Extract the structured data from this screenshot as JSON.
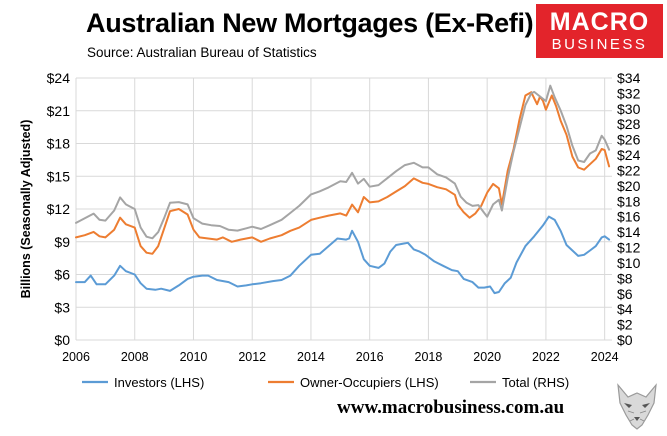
{
  "header": {
    "title": "Australian New Mortgages (Ex-Refi)",
    "source": "Source: Australian Bureau of Statistics"
  },
  "logo": {
    "line1": "MACRO",
    "line2": "BUSINESS"
  },
  "footer": {
    "url": "www.macrobusiness.com.au"
  },
  "chart_data": {
    "type": "line",
    "ylabel": "Billions (Seasonally Adjusted)",
    "xlim": [
      2006,
      2024.25
    ],
    "x_ticks": [
      2006,
      2008,
      2010,
      2012,
      2014,
      2016,
      2018,
      2020,
      2022,
      2024
    ],
    "x_tick_labels": [
      "2006",
      "2008",
      "2010",
      "2012",
      "2014",
      "2016",
      "2018",
      "2020",
      "2022",
      "2024"
    ],
    "ylim_left": [
      0,
      24
    ],
    "y_ticks_left": [
      0,
      3,
      6,
      9,
      12,
      15,
      18,
      21,
      24
    ],
    "y_tick_labels_left": [
      "$0",
      "$3",
      "$6",
      "$9",
      "$12",
      "$15",
      "$18",
      "$21",
      "$24"
    ],
    "ylim_right": [
      0,
      34
    ],
    "y_ticks_right": [
      0,
      2,
      4,
      6,
      8,
      10,
      12,
      14,
      16,
      18,
      20,
      22,
      24,
      26,
      28,
      30,
      32,
      34
    ],
    "y_tick_labels_right": [
      "$0",
      "$2",
      "$4",
      "$6",
      "$8",
      "$10",
      "$12",
      "$14",
      "$16",
      "$18",
      "$20",
      "$22",
      "$24",
      "$26",
      "$28",
      "$30",
      "$32",
      "$34"
    ],
    "grid": true,
    "legend_position": "bottom",
    "series": [
      {
        "name": "Investors (LHS)",
        "axis": "left",
        "color": "#5b9bd5",
        "points": [
          [
            2006.0,
            5.3
          ],
          [
            2006.3,
            5.3
          ],
          [
            2006.5,
            5.9
          ],
          [
            2006.7,
            5.1
          ],
          [
            2007.0,
            5.1
          ],
          [
            2007.3,
            5.9
          ],
          [
            2007.5,
            6.8
          ],
          [
            2007.7,
            6.3
          ],
          [
            2008.0,
            6.0
          ],
          [
            2008.2,
            5.2
          ],
          [
            2008.4,
            4.7
          ],
          [
            2008.7,
            4.6
          ],
          [
            2008.9,
            4.7
          ],
          [
            2009.2,
            4.5
          ],
          [
            2009.5,
            5.0
          ],
          [
            2009.8,
            5.6
          ],
          [
            2010.0,
            5.8
          ],
          [
            2010.3,
            5.9
          ],
          [
            2010.5,
            5.9
          ],
          [
            2010.8,
            5.5
          ],
          [
            2011.2,
            5.3
          ],
          [
            2011.5,
            4.9
          ],
          [
            2011.8,
            5.0
          ],
          [
            2012.0,
            5.1
          ],
          [
            2012.3,
            5.2
          ],
          [
            2012.7,
            5.4
          ],
          [
            2013.0,
            5.5
          ],
          [
            2013.3,
            5.9
          ],
          [
            2013.6,
            6.8
          ],
          [
            2014.0,
            7.8
          ],
          [
            2014.3,
            7.9
          ],
          [
            2014.6,
            8.6
          ],
          [
            2014.9,
            9.3
          ],
          [
            2015.2,
            9.2
          ],
          [
            2015.3,
            9.3
          ],
          [
            2015.4,
            10.0
          ],
          [
            2015.6,
            9.0
          ],
          [
            2015.8,
            7.4
          ],
          [
            2016.0,
            6.8
          ],
          [
            2016.3,
            6.6
          ],
          [
            2016.5,
            7.0
          ],
          [
            2016.7,
            8.1
          ],
          [
            2016.9,
            8.7
          ],
          [
            2017.1,
            8.8
          ],
          [
            2017.3,
            8.9
          ],
          [
            2017.5,
            8.3
          ],
          [
            2017.7,
            8.1
          ],
          [
            2017.9,
            7.8
          ],
          [
            2018.2,
            7.2
          ],
          [
            2018.5,
            6.8
          ],
          [
            2018.8,
            6.4
          ],
          [
            2019.0,
            6.3
          ],
          [
            2019.2,
            5.6
          ],
          [
            2019.5,
            5.3
          ],
          [
            2019.7,
            4.8
          ],
          [
            2019.9,
            4.8
          ],
          [
            2020.1,
            4.9
          ],
          [
            2020.25,
            4.3
          ],
          [
            2020.4,
            4.4
          ],
          [
            2020.6,
            5.2
          ],
          [
            2020.8,
            5.7
          ],
          [
            2021.0,
            7.1
          ],
          [
            2021.3,
            8.6
          ],
          [
            2021.6,
            9.5
          ],
          [
            2021.9,
            10.5
          ],
          [
            2022.1,
            11.3
          ],
          [
            2022.3,
            11.0
          ],
          [
            2022.5,
            10.0
          ],
          [
            2022.7,
            8.7
          ],
          [
            2022.9,
            8.2
          ],
          [
            2023.1,
            7.7
          ],
          [
            2023.3,
            7.8
          ],
          [
            2023.5,
            8.2
          ],
          [
            2023.7,
            8.6
          ],
          [
            2023.9,
            9.4
          ],
          [
            2024.0,
            9.5
          ],
          [
            2024.15,
            9.2
          ]
        ]
      },
      {
        "name": "Owner-Occupiers (LHS)",
        "axis": "left",
        "color": "#ed7d31",
        "points": [
          [
            2006.0,
            9.4
          ],
          [
            2006.3,
            9.6
          ],
          [
            2006.6,
            9.9
          ],
          [
            2006.8,
            9.5
          ],
          [
            2007.0,
            9.4
          ],
          [
            2007.3,
            10.1
          ],
          [
            2007.5,
            11.2
          ],
          [
            2007.7,
            10.6
          ],
          [
            2008.0,
            10.3
          ],
          [
            2008.2,
            8.6
          ],
          [
            2008.4,
            8.0
          ],
          [
            2008.6,
            7.9
          ],
          [
            2008.8,
            8.6
          ],
          [
            2009.0,
            10.2
          ],
          [
            2009.2,
            11.8
          ],
          [
            2009.5,
            12.0
          ],
          [
            2009.8,
            11.5
          ],
          [
            2010.0,
            10.1
          ],
          [
            2010.2,
            9.4
          ],
          [
            2010.5,
            9.3
          ],
          [
            2010.8,
            9.2
          ],
          [
            2011.0,
            9.4
          ],
          [
            2011.3,
            9.0
          ],
          [
            2011.6,
            9.2
          ],
          [
            2012.0,
            9.4
          ],
          [
            2012.3,
            9.0
          ],
          [
            2012.6,
            9.3
          ],
          [
            2013.0,
            9.6
          ],
          [
            2013.3,
            10.0
          ],
          [
            2013.6,
            10.3
          ],
          [
            2014.0,
            11.0
          ],
          [
            2014.3,
            11.2
          ],
          [
            2014.6,
            11.4
          ],
          [
            2015.0,
            11.6
          ],
          [
            2015.2,
            11.4
          ],
          [
            2015.4,
            12.4
          ],
          [
            2015.6,
            11.7
          ],
          [
            2015.8,
            13.1
          ],
          [
            2016.0,
            12.6
          ],
          [
            2016.3,
            12.7
          ],
          [
            2016.6,
            13.1
          ],
          [
            2016.9,
            13.6
          ],
          [
            2017.2,
            14.1
          ],
          [
            2017.5,
            14.8
          ],
          [
            2017.8,
            14.4
          ],
          [
            2018.0,
            14.3
          ],
          [
            2018.3,
            14.0
          ],
          [
            2018.6,
            13.8
          ],
          [
            2018.9,
            13.3
          ],
          [
            2019.0,
            12.4
          ],
          [
            2019.2,
            11.7
          ],
          [
            2019.4,
            11.2
          ],
          [
            2019.6,
            11.6
          ],
          [
            2019.8,
            12.3
          ],
          [
            2020.0,
            13.5
          ],
          [
            2020.2,
            14.3
          ],
          [
            2020.4,
            13.9
          ],
          [
            2020.5,
            12.4
          ],
          [
            2020.7,
            15.5
          ],
          [
            2020.9,
            17.5
          ],
          [
            2021.1,
            20.2
          ],
          [
            2021.3,
            22.4
          ],
          [
            2021.5,
            22.7
          ],
          [
            2021.7,
            21.6
          ],
          [
            2021.8,
            22.3
          ],
          [
            2021.9,
            21.9
          ],
          [
            2022.0,
            21.1
          ],
          [
            2022.2,
            22.4
          ],
          [
            2022.35,
            21.4
          ],
          [
            2022.5,
            20.1
          ],
          [
            2022.7,
            18.8
          ],
          [
            2022.9,
            16.8
          ],
          [
            2023.1,
            15.8
          ],
          [
            2023.3,
            15.6
          ],
          [
            2023.5,
            16.1
          ],
          [
            2023.7,
            16.6
          ],
          [
            2023.9,
            17.5
          ],
          [
            2024.0,
            17.4
          ],
          [
            2024.15,
            15.9
          ]
        ]
      },
      {
        "name": "Total (RHS)",
        "axis": "right",
        "color": "#a5a5a5",
        "points": [
          [
            2006.0,
            15.2
          ],
          [
            2006.3,
            15.8
          ],
          [
            2006.6,
            16.4
          ],
          [
            2006.8,
            15.6
          ],
          [
            2007.0,
            15.5
          ],
          [
            2007.3,
            16.8
          ],
          [
            2007.5,
            18.5
          ],
          [
            2007.7,
            17.6
          ],
          [
            2008.0,
            17.0
          ],
          [
            2008.2,
            14.6
          ],
          [
            2008.4,
            13.4
          ],
          [
            2008.6,
            13.2
          ],
          [
            2008.8,
            14.0
          ],
          [
            2009.0,
            15.8
          ],
          [
            2009.2,
            17.8
          ],
          [
            2009.5,
            17.9
          ],
          [
            2009.8,
            17.6
          ],
          [
            2010.0,
            15.8
          ],
          [
            2010.3,
            15.1
          ],
          [
            2010.6,
            14.9
          ],
          [
            2010.9,
            14.8
          ],
          [
            2011.2,
            14.3
          ],
          [
            2011.5,
            14.2
          ],
          [
            2011.8,
            14.5
          ],
          [
            2012.0,
            14.7
          ],
          [
            2012.3,
            14.4
          ],
          [
            2012.6,
            14.9
          ],
          [
            2013.0,
            15.6
          ],
          [
            2013.3,
            16.5
          ],
          [
            2013.6,
            17.4
          ],
          [
            2014.0,
            18.9
          ],
          [
            2014.3,
            19.3
          ],
          [
            2014.6,
            19.8
          ],
          [
            2015.0,
            20.6
          ],
          [
            2015.2,
            20.5
          ],
          [
            2015.4,
            21.7
          ],
          [
            2015.6,
            20.3
          ],
          [
            2015.8,
            20.9
          ],
          [
            2016.0,
            19.9
          ],
          [
            2016.3,
            20.1
          ],
          [
            2016.6,
            21.0
          ],
          [
            2016.9,
            21.9
          ],
          [
            2017.2,
            22.7
          ],
          [
            2017.5,
            23.0
          ],
          [
            2017.8,
            22.4
          ],
          [
            2018.0,
            22.4
          ],
          [
            2018.3,
            21.5
          ],
          [
            2018.6,
            21.1
          ],
          [
            2018.9,
            20.3
          ],
          [
            2019.1,
            18.6
          ],
          [
            2019.3,
            17.8
          ],
          [
            2019.5,
            17.4
          ],
          [
            2019.7,
            17.5
          ],
          [
            2019.9,
            16.5
          ],
          [
            2020.0,
            16.0
          ],
          [
            2020.2,
            17.6
          ],
          [
            2020.4,
            18.2
          ],
          [
            2020.5,
            16.8
          ],
          [
            2020.7,
            21.0
          ],
          [
            2020.9,
            24.5
          ],
          [
            2021.1,
            27.5
          ],
          [
            2021.3,
            30.5
          ],
          [
            2021.5,
            32.0
          ],
          [
            2021.6,
            32.2
          ],
          [
            2021.8,
            31.6
          ],
          [
            2022.0,
            31.0
          ],
          [
            2022.15,
            33.0
          ],
          [
            2022.3,
            31.5
          ],
          [
            2022.5,
            29.8
          ],
          [
            2022.7,
            27.8
          ],
          [
            2022.9,
            25.2
          ],
          [
            2023.1,
            23.3
          ],
          [
            2023.3,
            23.1
          ],
          [
            2023.5,
            24.2
          ],
          [
            2023.7,
            24.6
          ],
          [
            2023.9,
            26.5
          ],
          [
            2024.0,
            26.0
          ],
          [
            2024.15,
            24.7
          ]
        ]
      }
    ]
  }
}
